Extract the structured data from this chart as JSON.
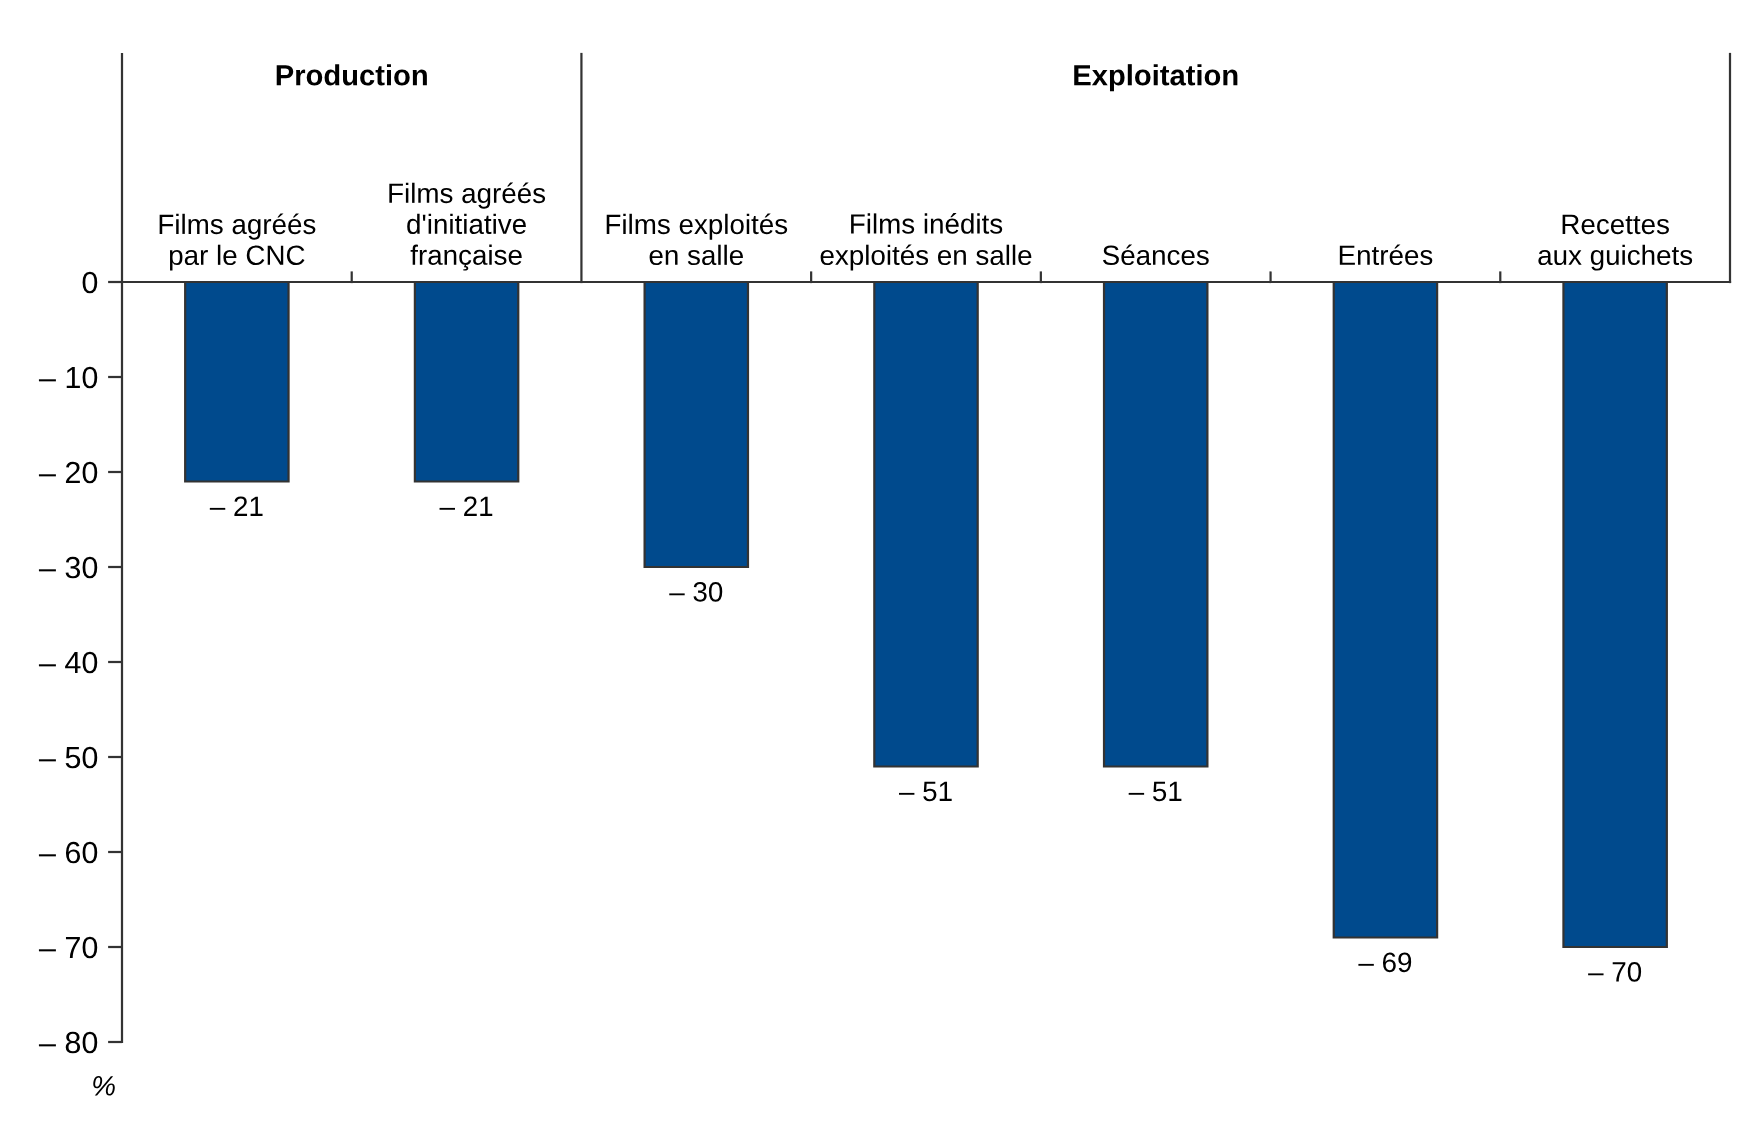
{
  "chart_data": {
    "type": "bar",
    "categories": [
      "Films agréés\npar le CNC",
      "Films agréés\nd'initiative\nfrançaise",
      "Films exploités\nen salle",
      "Films inédits\nexploités en salle",
      "Séances",
      "Entrées",
      "Recettes\naux guichets"
    ],
    "values": [
      -21,
      -21,
      -30,
      -51,
      -51,
      -69,
      -70
    ],
    "value_labels": [
      "– 21",
      "– 21",
      "– 30",
      "– 51",
      "– 51",
      "– 69",
      "– 70"
    ],
    "color": "#004a8d",
    "ylim": [
      -80,
      24
    ],
    "yticks": [
      0,
      {
        "value": -10,
        "label": "– 10"
      },
      {
        "value": -20,
        "label": "– 20"
      },
      {
        "value": -30,
        "label": "– 30"
      },
      {
        "value": -40,
        "label": "– 40"
      },
      {
        "value": -50,
        "label": "– 50"
      },
      {
        "value": -60,
        "label": "– 60"
      },
      {
        "value": -70,
        "label": "– 70"
      },
      {
        "value": -80,
        "label": "– 80"
      }
    ],
    "annotations": [
      "Production",
      "Exploitation",
      "%"
    ],
    "grid": false,
    "legend": false
  }
}
